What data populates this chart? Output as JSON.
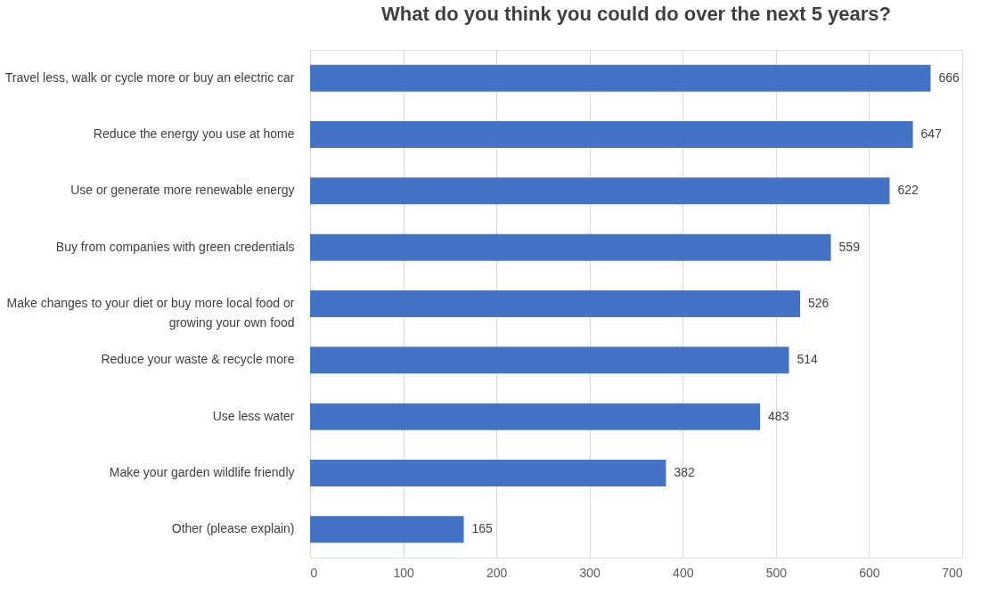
{
  "chart_data": {
    "type": "bar",
    "orientation": "horizontal",
    "title": "What do you think you could do over the next 5 years?",
    "categories": [
      "Travel less, walk or cycle more or buy an electric car",
      "Reduce the energy you use at home",
      "Use or generate more renewable energy",
      "Buy from companies with green credentials",
      "Make changes to your diet or buy more local food or\ngrowing your own food",
      "Reduce your waste & recycle more",
      "Use less water",
      "Make your garden wildlife friendly",
      "Other (please explain)"
    ],
    "values": [
      666,
      647,
      622,
      559,
      526,
      514,
      483,
      382,
      165
    ],
    "color": "#4472c4",
    "xlim": [
      0,
      700
    ],
    "xticks": [
      0,
      100,
      200,
      300,
      400,
      500,
      600,
      700
    ],
    "grid": "x",
    "data_labels": true
  }
}
